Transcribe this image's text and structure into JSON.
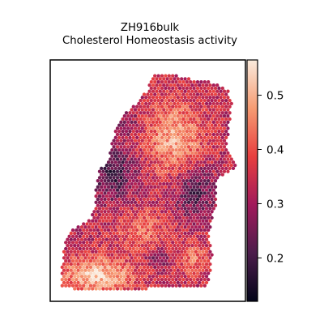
{
  "chart_data": {
    "type": "heatmap",
    "title": "ZH916bulk",
    "subtitle": "Cholesterol Homeostasis activity",
    "xlabel": "",
    "ylabel": "",
    "grid": false,
    "axes_ticks_shown": false,
    "colormap": "rocket",
    "colormap_stops": [
      "#03051a",
      "#4c1d4b",
      "#a11a5b",
      "#e83f3f",
      "#f69c73",
      "#faebdd"
    ],
    "colorbar": {
      "range": [
        0.12,
        0.565
      ],
      "ticks": [
        0.2,
        0.3,
        0.4,
        0.5
      ],
      "tick_labels": [
        "0.2",
        "0.3",
        "0.4",
        "0.5"
      ]
    },
    "spots": {
      "description_regions": [
        {
          "region": "bottom-left",
          "value_range": [
            0.45,
            0.55
          ]
        },
        {
          "region": "top-center",
          "value_range": [
            0.32,
            0.45
          ]
        },
        {
          "region": "left-middle",
          "value_range": [
            0.15,
            0.28
          ]
        },
        {
          "region": "center",
          "value_range": [
            0.3,
            0.45
          ]
        },
        {
          "region": "right-middle",
          "value_range": [
            0.2,
            0.35
          ]
        }
      ]
    }
  }
}
